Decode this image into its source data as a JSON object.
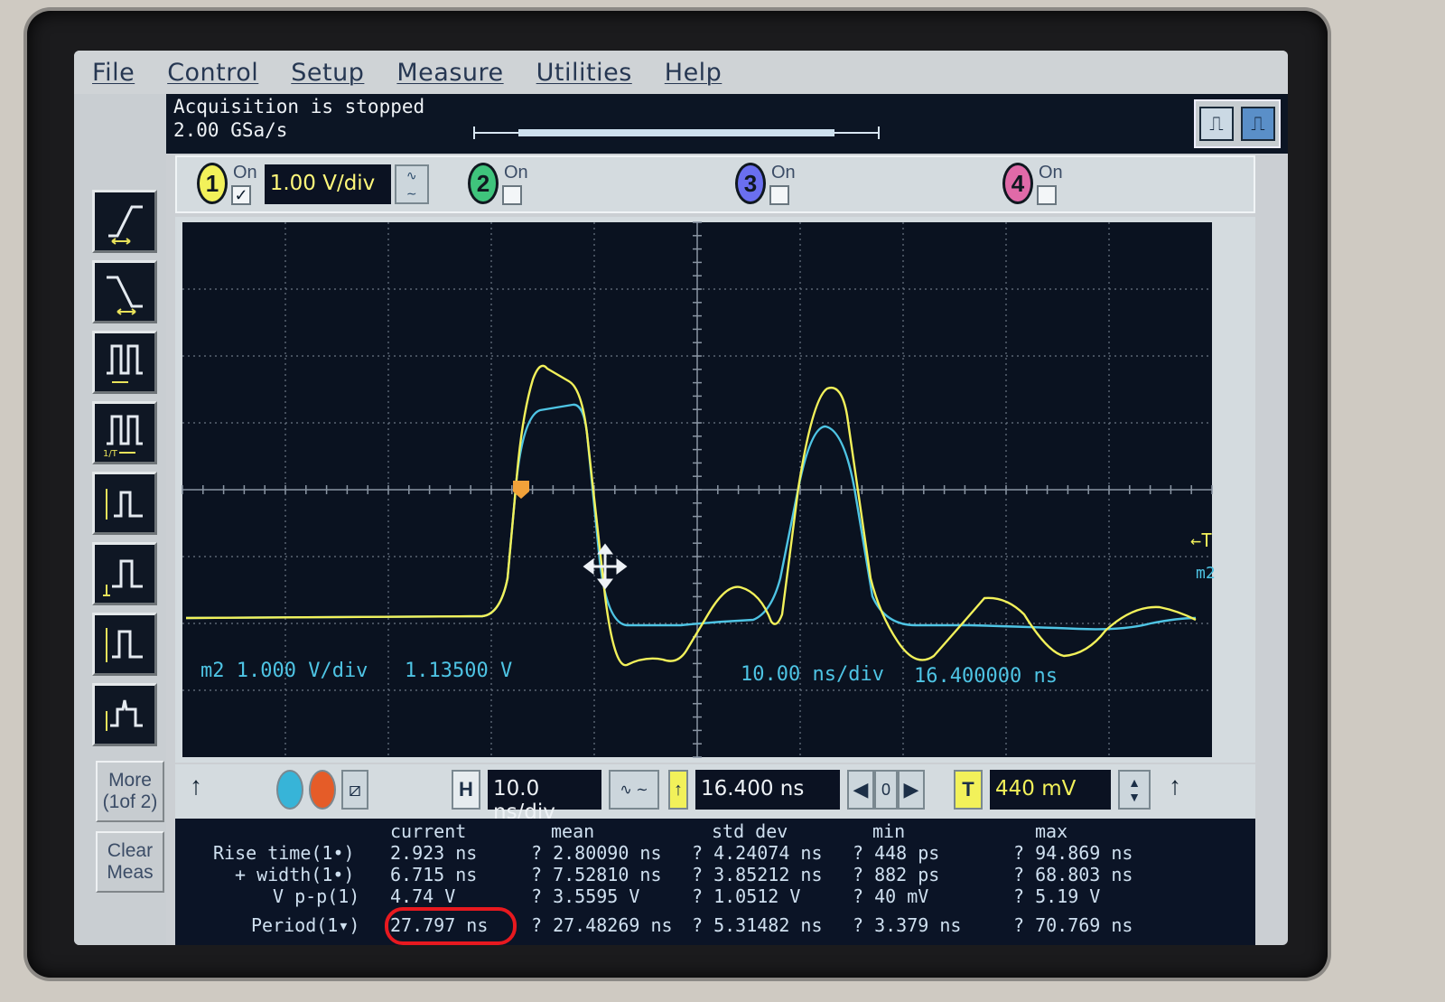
{
  "menu": [
    "File",
    "Control",
    "Setup",
    "Measure",
    "Utilities",
    "Help"
  ],
  "status": {
    "line1": "Acquisition is stopped",
    "line2": "2.00 GSa/s"
  },
  "channels": [
    {
      "num": "1",
      "on_label": "On",
      "checked": true,
      "color": "#f2f15a",
      "scale": "1.00 V/div"
    },
    {
      "num": "2",
      "on_label": "On",
      "checked": false,
      "color": "#3fc47c"
    },
    {
      "num": "3",
      "on_label": "On",
      "checked": false,
      "color": "#6a6ff0"
    },
    {
      "num": "4",
      "on_label": "On",
      "checked": false,
      "color": "#e06aa8"
    }
  ],
  "side": {
    "more": "More\n(1of 2)",
    "clear": "Clear\nMeas"
  },
  "waveform_labels": {
    "m2_scale": "m2 1.000 V/div",
    "m2_offset": "1.13500 V",
    "timebase": "10.00 ns/div",
    "delay": "16.400000 ns",
    "trigger_marker": "←T",
    "m2_marker": "m2"
  },
  "horizontal": {
    "h_label": "H",
    "timebase": "10.0 ns/div",
    "delay": "16.400 ns",
    "zero": "0",
    "t_label": "T",
    "trigger_level": "440 mV"
  },
  "measurements": {
    "headers": [
      "current",
      "mean",
      "std dev",
      "min",
      "max"
    ],
    "rows": [
      {
        "name": "Rise time(1•)",
        "current": "2.923 ns",
        "mean": "? 2.80090 ns",
        "std": "? 4.24074 ns",
        "min": "? 448 ps",
        "max": "? 94.869 ns"
      },
      {
        "name": "+ width(1•)",
        "current": "6.715 ns",
        "mean": "? 7.52810 ns",
        "std": "? 3.85212 ns",
        "min": "? 882 ps",
        "max": "? 68.803 ns"
      },
      {
        "name": "V p-p(1)",
        "current": "4.74 V",
        "mean": "? 3.5595 V",
        "std": "? 1.0512 V",
        "min": "? 40 mV",
        "max": "? 5.19 V"
      },
      {
        "name": "Period(1▾)",
        "current": "27.797 ns",
        "mean": "? 27.48269 ns",
        "std": "? 5.31482 ns",
        "min": "? 3.379 ns",
        "max": "? 70.769 ns"
      }
    ]
  },
  "colors": {
    "ch1": "#f2f15a",
    "m2": "#4ec4e4",
    "highlight": "#e8191f"
  }
}
